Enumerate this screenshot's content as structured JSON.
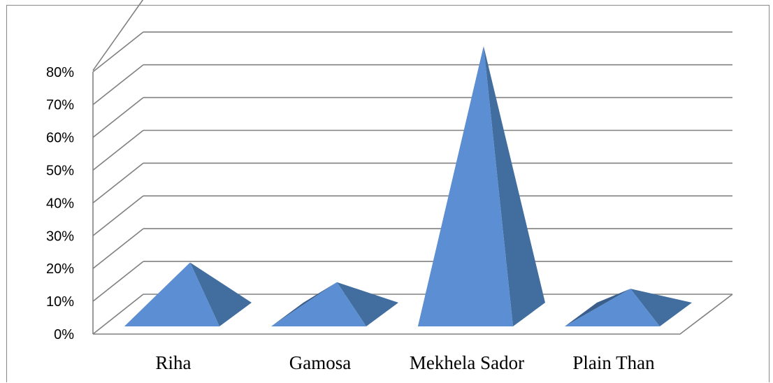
{
  "chart_data": {
    "type": "bar",
    "style": "3d-pyramid",
    "categories": [
      "Riha",
      "Gamosa",
      "Mekhela Sador",
      "Plain Than"
    ],
    "values": [
      15,
      9,
      81,
      7
    ],
    "unit": "%",
    "ylim": [
      0,
      80
    ],
    "yticks": [
      "0%",
      "10%",
      "20%",
      "30%",
      "40%",
      "50%",
      "60%",
      "70%",
      "80%"
    ],
    "grid": true,
    "legend": "none",
    "colors": {
      "front": "#5B8ED3",
      "side": "#3B5F8C",
      "side_light": "#426D9F",
      "grid": "#808080"
    }
  }
}
